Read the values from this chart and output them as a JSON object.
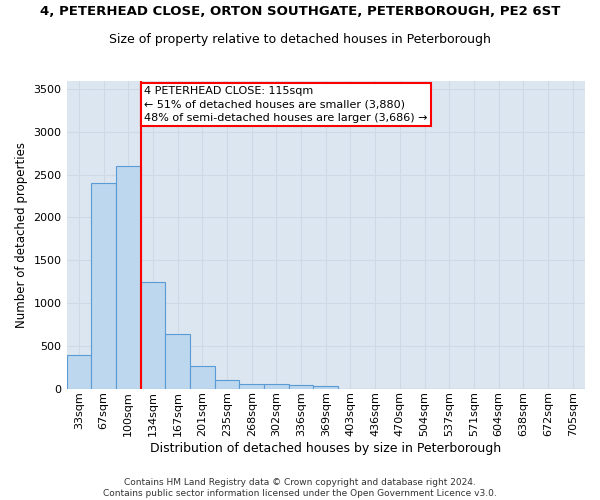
{
  "title": "4, PETERHEAD CLOSE, ORTON SOUTHGATE, PETERBOROUGH, PE2 6ST",
  "subtitle": "Size of property relative to detached houses in Peterborough",
  "xlabel": "Distribution of detached houses by size in Peterborough",
  "ylabel": "Number of detached properties",
  "categories": [
    "33sqm",
    "67sqm",
    "100sqm",
    "134sqm",
    "167sqm",
    "201sqm",
    "235sqm",
    "268sqm",
    "302sqm",
    "336sqm",
    "369sqm",
    "403sqm",
    "436sqm",
    "470sqm",
    "504sqm",
    "537sqm",
    "571sqm",
    "604sqm",
    "638sqm",
    "672sqm",
    "705sqm"
  ],
  "values": [
    390,
    2400,
    2600,
    1250,
    640,
    260,
    100,
    60,
    55,
    45,
    30,
    0,
    0,
    0,
    0,
    0,
    0,
    0,
    0,
    0,
    0
  ],
  "bar_color": "#bdd7ee",
  "bar_edge_color": "#5b9bd5",
  "grid_color": "#d0d8e8",
  "background_color": "#dce6f1",
  "annotation_text": "4 PETERHEAD CLOSE: 115sqm\n← 51% of detached houses are smaller (3,880)\n48% of semi-detached houses are larger (3,686) →",
  "annotation_box_color": "white",
  "annotation_box_edge": "red",
  "red_line_index": 2.5,
  "ylim": [
    0,
    3600
  ],
  "yticks": [
    0,
    500,
    1000,
    1500,
    2000,
    2500,
    3000,
    3500
  ],
  "footer": "Contains HM Land Registry data © Crown copyright and database right 2024.\nContains public sector information licensed under the Open Government Licence v3.0.",
  "title_fontsize": 9.5,
  "subtitle_fontsize": 9,
  "ylabel_fontsize": 8.5,
  "xlabel_fontsize": 9,
  "tick_fontsize": 8,
  "footer_fontsize": 6.5
}
